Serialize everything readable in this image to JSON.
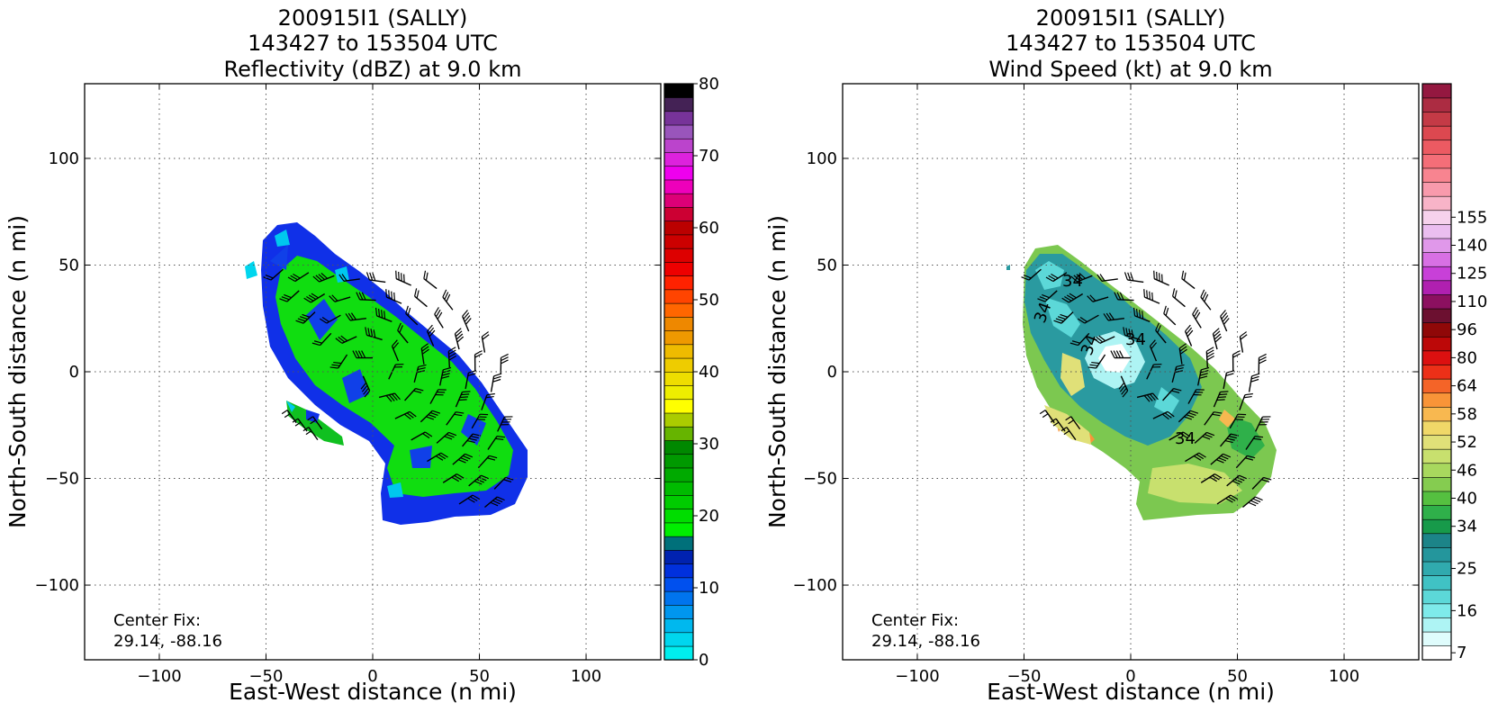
{
  "chart_data": [
    {
      "type": "heatmap",
      "title_lines": [
        "200915I1 (SALLY)",
        "143427 to 153504 UTC",
        "Reflectivity (dBZ) at 9.0 km"
      ],
      "xlabel": "East-West distance (n mi)",
      "ylabel": "North-South distance (n mi)",
      "xlim": [
        -135,
        135
      ],
      "ylim": [
        -135,
        135
      ],
      "xticks": [
        -100,
        -50,
        0,
        50,
        100
      ],
      "yticks": [
        -100,
        -50,
        0,
        50,
        100
      ],
      "grid": true,
      "annotation_lines": [
        "Center Fix:",
        "29.14, -88.16"
      ],
      "colorbar": {
        "range": [
          0,
          80
        ],
        "tick_values": [
          0,
          10,
          20,
          30,
          40,
          50,
          60,
          70,
          80
        ],
        "tick_labels": [
          "0",
          "10",
          "20",
          "30",
          "40",
          "50",
          "60",
          "70",
          "80"
        ],
        "colors": [
          "#00eeee",
          "#00d6ee",
          "#00b8ee",
          "#0096ee",
          "#0074ee",
          "#0050ee",
          "#0030dd",
          "#0022b0",
          "#00707a",
          "#00ee00",
          "#00dd00",
          "#00cc00",
          "#00bb00",
          "#00aa00",
          "#009900",
          "#008800",
          "#66b400",
          "#aacc00",
          "#ffff00",
          "#eeee00",
          "#eedd00",
          "#eecc00",
          "#eebb00",
          "#ee9900",
          "#ee8800",
          "#ff6600",
          "#ff4400",
          "#ff2200",
          "#ee0000",
          "#dd0000",
          "#cc0000",
          "#bb0000",
          "#cc0033",
          "#dd0077",
          "#ee00bb",
          "#ee00ee",
          "#dd22dd",
          "#bb44cc",
          "#9955bb",
          "#773399",
          "#442255",
          "#000000"
        ]
      },
      "wind_barbs": true
    },
    {
      "type": "heatmap",
      "title_lines": [
        "200915I1 (SALLY)",
        "143427 to 153504 UTC",
        "Wind Speed (kt) at 9.0 km"
      ],
      "xlabel": "East-West distance (n mi)",
      "ylabel": "North-South distance (n mi)",
      "xlim": [
        -135,
        135
      ],
      "ylim": [
        -135,
        135
      ],
      "xticks": [
        -100,
        -50,
        0,
        50,
        100
      ],
      "yticks": [
        -100,
        -50,
        0,
        50,
        100
      ],
      "grid": true,
      "annotation_lines": [
        "Center Fix:",
        "29.14, -88.16"
      ],
      "contour_labels": [
        "34",
        "34",
        "34",
        "34",
        "34"
      ],
      "colorbar": {
        "tick_labels": [
          "7",
          "16",
          "25",
          "34",
          "40",
          "46",
          "52",
          "58",
          "64",
          "80",
          "96",
          "110",
          "125",
          "140",
          "155"
        ],
        "tick_bins": [
          0,
          3,
          6,
          9,
          11,
          13,
          15,
          17,
          19,
          21,
          23,
          25,
          27,
          29,
          31
        ],
        "colors": [
          "#ffffff",
          "#dffcfc",
          "#aef4f4",
          "#7eeaea",
          "#5cd8d8",
          "#40c2c4",
          "#30aaae",
          "#24969c",
          "#1c8488",
          "#179a4a",
          "#2fb04a",
          "#55c040",
          "#85cc50",
          "#a8d85e",
          "#c8e06e",
          "#e0e078",
          "#f0d868",
          "#f8b850",
          "#f89438",
          "#f46428",
          "#ec3018",
          "#dc1010",
          "#bc0808",
          "#900808",
          "#6c1030",
          "#8c1060",
          "#b020b0",
          "#c840d8",
          "#d870e4",
          "#e098ea",
          "#ebbef0",
          "#f6d2ec",
          "#f8b4c8",
          "#f89aac",
          "#f88490",
          "#f46e78",
          "#ec5a62",
          "#dc4850",
          "#c43a46",
          "#ac2c42",
          "#941840"
        ]
      },
      "wind_barbs": true
    }
  ]
}
